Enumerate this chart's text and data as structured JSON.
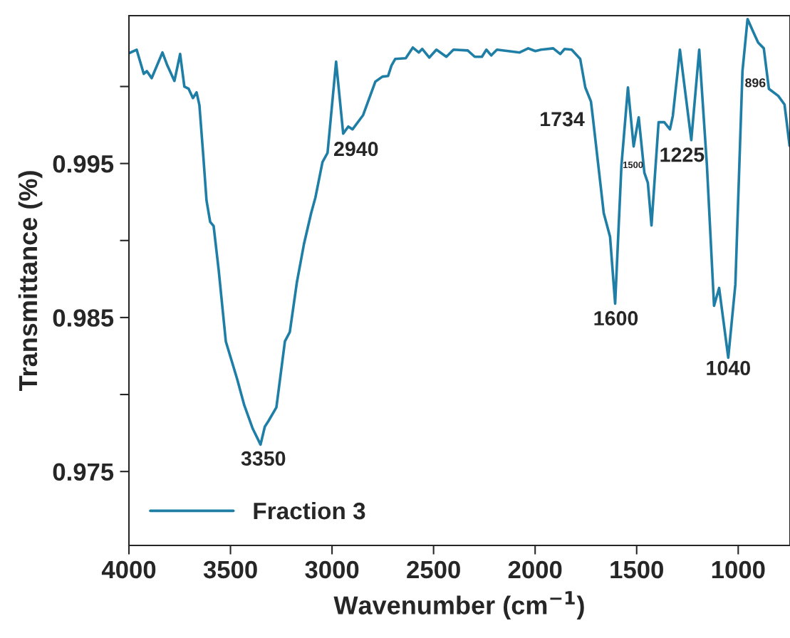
{
  "chart_data": {
    "type": "line",
    "xlabel": "Wavenumber (cm$^{−1}$)",
    "ylabel": "Transmittance (%)",
    "xlim": [
      4000,
      745
    ],
    "xticks": [
      4000,
      3500,
      3000,
      2500,
      2000,
      1500,
      1000
    ],
    "ylim": [
      0.9702,
      1.0046
    ],
    "yticks": [
      0.975,
      {
        "value": 0.98,
        "label": null
      },
      0.985,
      {
        "value": 0.99,
        "label": null
      },
      0.995,
      {
        "value": 1.0,
        "label": null
      }
    ],
    "grid": false,
    "legend": "bottom left",
    "marker": "none",
    "line_style": "solid",
    "series": [
      {
        "name": "Fraction 3",
        "color": "#1f7ea6",
        "x": [
          4000,
          3962,
          3927,
          3912,
          3888,
          3835,
          3811,
          3776,
          3748,
          3727,
          3706,
          3685,
          3667,
          3653,
          3635,
          3618,
          3600,
          3583,
          3558,
          3523,
          3467,
          3432,
          3390,
          3352,
          3331,
          3313,
          3274,
          3232,
          3208,
          3173,
          3138,
          3103,
          3082,
          3047,
          3022,
          2980,
          2945,
          2920,
          2899,
          2847,
          2787,
          2752,
          2724,
          2707,
          2689,
          2637,
          2602,
          2573,
          2556,
          2521,
          2486,
          2437,
          2402,
          2332,
          2297,
          2262,
          2240,
          2216,
          2188,
          2076,
          2034,
          1999,
          1971,
          1911,
          1876,
          1855,
          1820,
          1778,
          1753,
          1725,
          1715,
          1662,
          1631,
          1606,
          1575,
          1543,
          1515,
          1490,
          1462,
          1445,
          1427,
          1392,
          1364,
          1336,
          1322,
          1298,
          1287,
          1231,
          1192,
          1154,
          1119,
          1094,
          1049,
          1014,
          979,
          954,
          926,
          902,
          874,
          849,
          803,
          772,
          747
        ],
        "values": [
          1.00216,
          1.00239,
          1.00082,
          1.001,
          1.00054,
          1.00221,
          1.00137,
          1.00036,
          1.00211,
          0.99999,
          0.99985,
          0.99925,
          0.99962,
          0.99879,
          0.99569,
          0.9926,
          0.99121,
          0.99094,
          0.98807,
          0.98345,
          0.981,
          0.9793,
          0.97777,
          0.97675,
          0.97791,
          0.97828,
          0.97916,
          0.98345,
          0.98405,
          0.98729,
          0.98978,
          0.99177,
          0.99278,
          0.99509,
          0.99569,
          1.00161,
          0.99694,
          0.9974,
          0.99722,
          0.99814,
          1.00031,
          1.00064,
          1.00068,
          1.00137,
          1.00179,
          1.00184,
          1.00253,
          1.00221,
          1.00244,
          1.00188,
          1.00239,
          1.00193,
          1.00239,
          1.00234,
          1.00193,
          1.00193,
          1.00239,
          1.00202,
          1.00239,
          1.00221,
          1.00248,
          1.0023,
          1.00239,
          1.00248,
          1.00211,
          1.00244,
          1.00239,
          1.00179,
          0.99994,
          0.99902,
          0.99791,
          0.99177,
          0.99024,
          0.9859,
          0.99486,
          0.99994,
          0.99611,
          0.998,
          0.9944,
          0.99375,
          0.99098,
          0.99768,
          0.99768,
          0.99722,
          0.99809,
          1.001,
          1.00239,
          0.99652,
          1.00239,
          0.99486,
          0.98576,
          0.98692,
          0.98239,
          0.98715,
          1.001,
          1.00438,
          1.00355,
          1.00285,
          1.00248,
          0.99985,
          0.99939,
          0.99883,
          0.99615
        ]
      }
    ],
    "annotations": [
      {
        "text": "3350",
        "x": 3352,
        "y": 0.97675
      },
      {
        "text": "2940",
        "x": 2945,
        "y": 0.99694
      },
      {
        "text": "1734",
        "x": 1734,
        "y": 0.99939
      },
      {
        "text": "1600",
        "x": 1606,
        "y": 0.9859
      },
      {
        "text": "1500",
        "x": 1462,
        "y": 0.9944
      },
      {
        "text": "1225",
        "x": 1231,
        "y": 0.99652
      },
      {
        "text": "1040",
        "x": 1049,
        "y": 0.98239
      },
      {
        "text": "896",
        "x": 849,
        "y": 0.99985
      }
    ]
  }
}
